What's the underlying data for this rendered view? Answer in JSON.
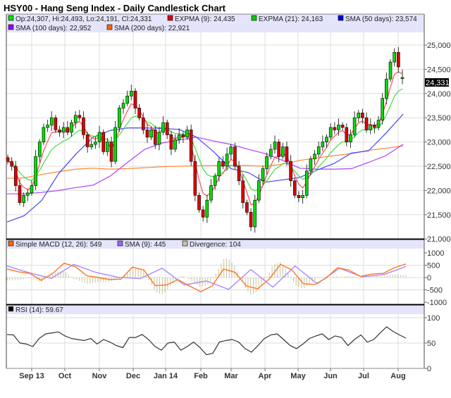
{
  "title": "HSY00 - Hang Seng Index - Daily Candlestick Chart",
  "colors": {
    "up": "#00dd00",
    "down": "#dd0000",
    "expma9": "#ff5050",
    "expma21": "#44dd44",
    "sma50": "#4444ff",
    "sma100": "#aa44ff",
    "sma200": "#ff8833",
    "macd": "#ff7722",
    "signal": "#aa88ff",
    "divergence": "#c8c49a",
    "rsi": "#333333",
    "legend_bg": "#e4e4fa",
    "grid": "#dddddd"
  },
  "main": {
    "legend": [
      {
        "label": "Op:24,307, Hi:24,493, Lo:24,191, Cl:24,331",
        "color": "#00dd00"
      },
      {
        "label": "EXPMA (9): 24,435",
        "color": "#dd0000"
      },
      {
        "label": "EXPMA (21): 24,163",
        "color": "#00cc00"
      },
      {
        "label": "SMA (50 days): 23,574",
        "color": "#0000ee"
      },
      {
        "label": "SMA (100 days): 22,952",
        "color": "#9900ff"
      },
      {
        "label": "SMA (200 days): 22,921",
        "color": "#ff6600"
      }
    ],
    "y_ticks": [
      "21,000",
      "21,500",
      "22,000",
      "22,500",
      "23,000",
      "23,500",
      "24,000",
      "24,500",
      "25,000"
    ],
    "ylim": [
      21000,
      25000
    ],
    "last_price_label": "24,331"
  },
  "macd_panel": {
    "legend": [
      {
        "label": "Simple MACD (12, 26): 549",
        "color": "#ff6600"
      },
      {
        "label": "SMA (9): 445",
        "color": "#9966ff"
      },
      {
        "label": "Divergence: 104",
        "color": "#c8c49a"
      }
    ],
    "y_ticks": [
      "-1000",
      "-500",
      "0",
      "500",
      "1000"
    ]
  },
  "rsi_panel": {
    "legend": [
      {
        "label": "RSI (14): 59.67",
        "color": "#000000"
      }
    ],
    "y_ticks": [
      "0",
      "50",
      "100"
    ]
  },
  "x_ticks": [
    "Sep 13",
    "Oct",
    "Nov",
    "Dec",
    "Jan 14",
    "Feb",
    "Mar",
    "Apr",
    "May",
    "Jun",
    "Jul",
    "Aug"
  ],
  "chart_data": {
    "type": "candlestick",
    "closes": [
      22600,
      22500,
      22100,
      21750,
      21900,
      21950,
      22100,
      22700,
      23000,
      23300,
      23350,
      23500,
      23250,
      23200,
      23300,
      23200,
      23400,
      23550,
      23500,
      23150,
      22900,
      22950,
      23000,
      23200,
      22800,
      23000,
      22600,
      23300,
      23700,
      23800,
      23950,
      24050,
      23700,
      23500,
      23250,
      23100,
      23250,
      22950,
      23200,
      23400,
      23150,
      22850,
      23050,
      23150,
      23100,
      23250,
      22600,
      21900,
      21600,
      21450,
      21800,
      22100,
      22300,
      22600,
      22500,
      22750,
      22900,
      22500,
      22200,
      21750,
      21550,
      21250,
      21800,
      22200,
      22450,
      22700,
      22850,
      23000,
      22700,
      22900,
      22600,
      22200,
      21900,
      21850,
      21900,
      22400,
      22650,
      22750,
      22900,
      23000,
      23100,
      23300,
      23250,
      23350,
      23300,
      23000,
      23150,
      23500,
      23600,
      23500,
      23250,
      23350,
      23300,
      23450,
      23900,
      24300,
      24650,
      24850,
      24550,
      24331
    ],
    "last_candle": {
      "open": 24307,
      "high": 24493,
      "low": 24191,
      "close": 24331
    },
    "sma50": [
      21350,
      21480,
      21790,
      22350,
      22750,
      23100,
      23240,
      23290,
      23290,
      23280,
      23260,
      23100,
      22800,
      22450,
      22370,
      22170,
      22220,
      22270,
      22420,
      22560,
      22770,
      22820,
      23180,
      23574
    ],
    "sma100": [
      21930,
      21930,
      21960,
      22000,
      22060,
      22110,
      22300,
      22580,
      22850,
      22980,
      23040,
      23100,
      23020,
      22950,
      22850,
      22760,
      22620,
      22460,
      22440,
      22440,
      22450,
      22580,
      22720,
      22952
    ],
    "sma200": [
      22250,
      22260,
      22330,
      22390,
      22440,
      22460,
      22440,
      22450,
      22470,
      22490,
      22500,
      22510,
      22515,
      22520,
      22515,
      22500,
      22540,
      22620,
      22670,
      22720,
      22760,
      22830,
      22870,
      22921
    ],
    "macd": [
      350,
      230,
      170,
      -110,
      170,
      580,
      440,
      75,
      0,
      -80,
      -65,
      425,
      305,
      -325,
      -300,
      -85,
      -340,
      -575,
      -340,
      350,
      210,
      -340,
      -455,
      -65,
      535,
      305,
      -250,
      -280,
      -20,
      400,
      305,
      45,
      140,
      170,
      400,
      549
    ],
    "macd_signal": [
      470,
      195,
      -35,
      535,
      210,
      10,
      -45,
      380,
      -300,
      -140,
      -480,
      325,
      -390,
      470,
      -250,
      380,
      30,
      120,
      445
    ],
    "rsi": [
      67,
      66,
      50,
      48,
      43,
      59,
      68,
      70,
      72,
      64,
      59,
      57,
      55,
      59,
      48,
      57,
      52,
      45,
      41,
      61,
      61,
      67,
      57,
      43,
      36,
      50,
      52,
      36,
      43,
      52,
      41,
      27,
      30,
      52,
      55,
      57,
      52,
      39,
      32,
      45,
      59,
      66,
      68,
      57,
      45,
      39,
      48,
      59,
      64,
      68,
      57,
      64,
      61,
      45,
      57,
      66,
      52,
      57,
      70,
      82,
      73,
      66,
      59.67
    ],
    "ylim_macd": [
      -1000,
      1000
    ],
    "ylim_rsi": [
      0,
      100
    ],
    "grid": true
  }
}
